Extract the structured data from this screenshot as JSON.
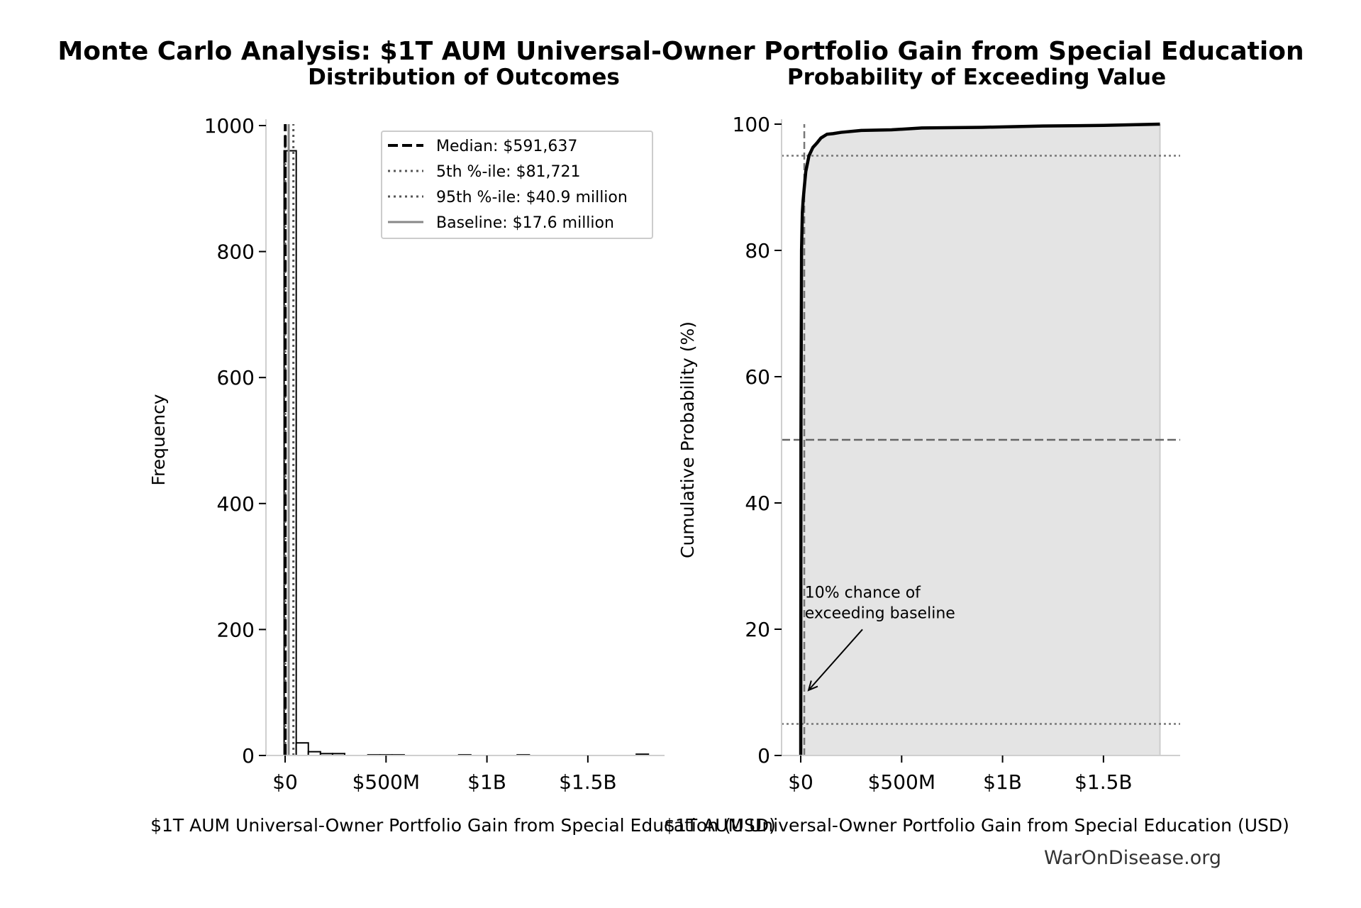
{
  "figure": {
    "suptitle": "Monte Carlo Analysis: $1T AUM Universal-Owner Portfolio Gain from Special Education",
    "footer": "WarOnDisease.org"
  },
  "chart_data": [
    {
      "type": "bar",
      "title": "Distribution of Outcomes",
      "xlabel": "$1T AUM Universal-Owner Portfolio Gain from Special Education (USD)",
      "ylabel": "Frequency",
      "xlim": [
        -95000000,
        1880000000
      ],
      "ylim": [
        0,
        1000
      ],
      "xticks": [
        {
          "value": 0,
          "label": "$0"
        },
        {
          "value": 500000000,
          "label": "$500M"
        },
        {
          "value": 1000000000,
          "label": "$1B"
        },
        {
          "value": 1500000000,
          "label": "$1.5B"
        }
      ],
      "yticks": [
        {
          "value": 0,
          "label": "0"
        },
        {
          "value": 200,
          "label": "200"
        },
        {
          "value": 400,
          "label": "400"
        },
        {
          "value": 600,
          "label": "600"
        },
        {
          "value": 800,
          "label": "800"
        },
        {
          "value": 1000,
          "label": "1000"
        }
      ],
      "bin_width": 60000000,
      "bins": [
        {
          "x0": -5000000,
          "count": 960
        },
        {
          "x0": 55000000,
          "count": 20
        },
        {
          "x0": 115000000,
          "count": 6
        },
        {
          "x0": 175000000,
          "count": 3
        },
        {
          "x0": 235000000,
          "count": 3
        },
        {
          "x0": 410000000,
          "count": 1
        },
        {
          "x0": 470000000,
          "count": 1
        },
        {
          "x0": 530000000,
          "count": 1
        },
        {
          "x0": 860000000,
          "count": 1
        },
        {
          "x0": 1150000000,
          "count": 1
        },
        {
          "x0": 1740000000,
          "count": 2
        }
      ],
      "reference_lines": [
        {
          "name": "Median",
          "value": 591637,
          "style": "dashed",
          "legend": "Median: $591,637"
        },
        {
          "name": "5th percentile",
          "value": 81721,
          "style": "dotted",
          "legend": "5th %-ile: $81,721"
        },
        {
          "name": "95th percentile",
          "value": 40900000,
          "style": "dotted",
          "legend": "95th %-ile: $40.9 million"
        },
        {
          "name": "Baseline",
          "value": 17600000,
          "style": "solid",
          "legend": "Baseline: $17.6 million"
        }
      ],
      "legend_position": "upper right"
    },
    {
      "type": "line",
      "title": "Probability of Exceeding Value",
      "xlabel": "$1T AUM Universal-Owner Portfolio Gain from Special Education (USD)",
      "ylabel": "Cumulative Probability (%)",
      "xlim": [
        -95000000,
        1880000000
      ],
      "ylim": [
        0,
        100
      ],
      "xticks": [
        {
          "value": 0,
          "label": "$0"
        },
        {
          "value": 500000000,
          "label": "$500M"
        },
        {
          "value": 1000000000,
          "label": "$1B"
        },
        {
          "value": 1500000000,
          "label": "$1.5B"
        }
      ],
      "yticks": [
        {
          "value": 0,
          "label": "0"
        },
        {
          "value": 20,
          "label": "20"
        },
        {
          "value": 40,
          "label": "40"
        },
        {
          "value": 60,
          "label": "60"
        },
        {
          "value": 80,
          "label": "80"
        },
        {
          "value": 100,
          "label": "100"
        }
      ],
      "x": [
        0,
        0,
        1000000,
        4000000,
        8000000,
        12000000,
        17600000,
        25000000,
        40900000,
        60000000,
        80000000,
        100000000,
        130000000,
        160000000,
        200000000,
        300000000,
        450000000,
        600000000,
        900000000,
        1200000000,
        1500000000,
        1780000000
      ],
      "y": [
        0,
        5,
        50,
        80,
        86,
        88,
        90,
        92.5,
        95,
        96.3,
        97,
        97.8,
        98.4,
        98.5,
        98.7,
        99.0,
        99.1,
        99.4,
        99.5,
        99.7,
        99.8,
        100
      ],
      "reference_hlines": [
        {
          "value": 95,
          "style": "dotted"
        },
        {
          "value": 50,
          "style": "dashed"
        },
        {
          "value": 5,
          "style": "dotted"
        }
      ],
      "baseline_vline": {
        "value": 17600000,
        "y_max": 100,
        "style": "dashed"
      },
      "shade_to_x": 1780000000,
      "annotation": {
        "text_lines": [
          "10% chance of",
          "exceeding baseline"
        ],
        "point_x": 17600000,
        "point_y": 10,
        "text_x": 20000000,
        "text_y": 23
      }
    }
  ]
}
